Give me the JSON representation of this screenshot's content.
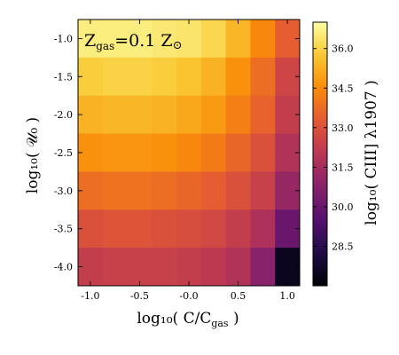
{
  "chart_data": {
    "type": "heatmap",
    "annotation": "Z",
    "annotation_sub": "gas",
    "annotation_rest": "=0.1 Z",
    "annotation_sym": "⊙",
    "xlabel": "log₁₀( C/C",
    "xlabel_sub": "gas",
    "xlabel_end": " )",
    "ylabel": "log₁₀( 𝒰₀ )",
    "colorbar_label": "log₁₀( CIII] λ1907 )",
    "x_centers": [
      -1.0,
      -0.75,
      -0.5,
      -0.25,
      0.0,
      0.25,
      0.5,
      0.75,
      1.0
    ],
    "y_centers": [
      -1.0,
      -1.5,
      -2.0,
      -2.5,
      -3.0,
      -3.5,
      -4.0
    ],
    "xlim": [
      -1.125,
      1.125
    ],
    "ylim": [
      -4.25,
      -0.75
    ],
    "xticks": [
      "-1.0",
      "-0.5",
      "-0.0",
      "0.5",
      "1.0"
    ],
    "xtick_values": [
      -1.0,
      -0.5,
      0.0,
      0.5,
      1.0
    ],
    "yticks": [
      "-1.0",
      "-1.5",
      "-2.0",
      "-2.5",
      "-3.0",
      "-3.5",
      "-4.0"
    ],
    "ytick_values": [
      -1.0,
      -1.5,
      -2.0,
      -2.5,
      -3.0,
      -3.5,
      -4.0
    ],
    "values": [
      [
        36.6,
        36.6,
        36.6,
        36.5,
        36.4,
        36.1,
        35.4,
        34.4,
        33.4
      ],
      [
        35.9,
        36.0,
        36.0,
        35.9,
        35.7,
        35.3,
        34.6,
        33.8,
        32.6
      ],
      [
        35.3,
        35.4,
        35.4,
        35.3,
        35.1,
        34.8,
        34.2,
        33.5,
        32.3
      ],
      [
        34.6,
        34.7,
        34.7,
        34.6,
        34.4,
        34.1,
        33.6,
        33.0,
        31.8
      ],
      [
        33.8,
        33.9,
        33.9,
        33.8,
        33.6,
        33.4,
        33.0,
        32.4,
        31.1
      ],
      [
        33.0,
        33.1,
        33.1,
        33.0,
        32.9,
        32.7,
        32.3,
        31.7,
        30.0
      ],
      [
        32.3,
        32.4,
        32.4,
        32.4,
        32.3,
        32.1,
        31.8,
        30.8,
        27.5
      ]
    ],
    "vmin": 27.0,
    "vmax": 37.0,
    "colorbar_ticks": [
      "28.5",
      "30.0",
      "31.5",
      "33.0",
      "34.5",
      "36.0"
    ],
    "colorbar_tick_values": [
      28.5,
      30.0,
      31.5,
      33.0,
      34.5,
      36.0
    ],
    "colormap": "inferno"
  }
}
